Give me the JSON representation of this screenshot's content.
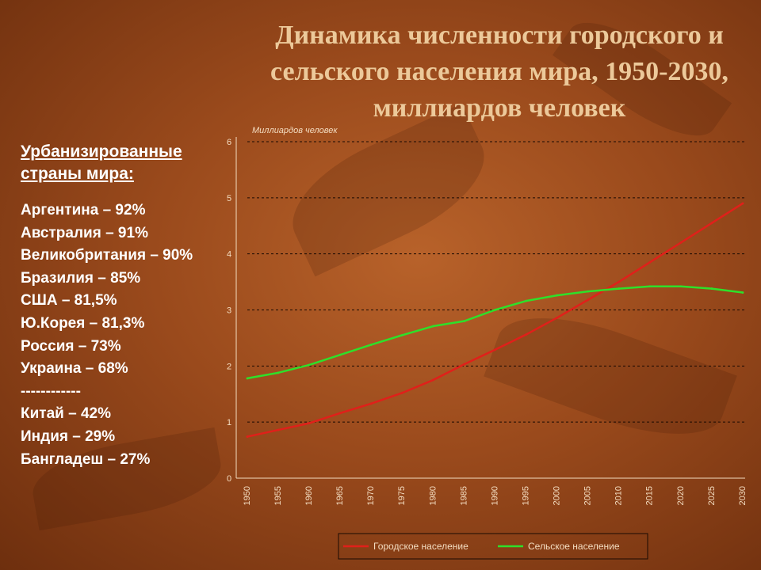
{
  "title": "Динамика численности городского и сельского населения мира, 1950-2030, миллиардов человек",
  "left_panel": {
    "subtitle": "Урбанизированные страны мира:",
    "items": [
      "Аргентина – 92%",
      "Австралия – 91%",
      "Великобритания – 90%",
      "Бразилия – 85%",
      "США – 81,5%",
      "Ю.Корея – 81,3%",
      "Россия – 73%",
      "Украина – 68%",
      "------------",
      "Китай – 42%",
      "Индия – 29%",
      "Бангладеш – 27%"
    ]
  },
  "colors": {
    "urban": "#e0201a",
    "rural": "#2ee02a",
    "grid": "#1a0a02",
    "title": "#ecc99a"
  },
  "chart_data": {
    "type": "line",
    "title": "",
    "ylabel": "Миллиардов человек",
    "xlabel": "",
    "x": [
      "1950",
      "1955",
      "1960",
      "1965",
      "1970",
      "1975",
      "1980",
      "1985",
      "1990",
      "1995",
      "2000",
      "2005",
      "2010",
      "2015",
      "2020",
      "2025",
      "2030"
    ],
    "ylim": [
      0,
      6
    ],
    "yticks": [
      "0",
      "1",
      "2",
      "3",
      "4",
      "5",
      "6"
    ],
    "grid": true,
    "legend": "bottom",
    "series": [
      {
        "name": "Городское население",
        "color": "#e0201a",
        "values": [
          0.74,
          0.86,
          0.98,
          1.16,
          1.33,
          1.52,
          1.75,
          2.03,
          2.29,
          2.56,
          2.86,
          3.18,
          3.5,
          3.85,
          4.2,
          4.55,
          4.9
        ]
      },
      {
        "name": "Сельское население",
        "color": "#2ee02a",
        "values": [
          1.78,
          1.88,
          2.02,
          2.2,
          2.38,
          2.55,
          2.71,
          2.8,
          3.0,
          3.16,
          3.26,
          3.33,
          3.38,
          3.42,
          3.42,
          3.38,
          3.31
        ]
      }
    ]
  }
}
